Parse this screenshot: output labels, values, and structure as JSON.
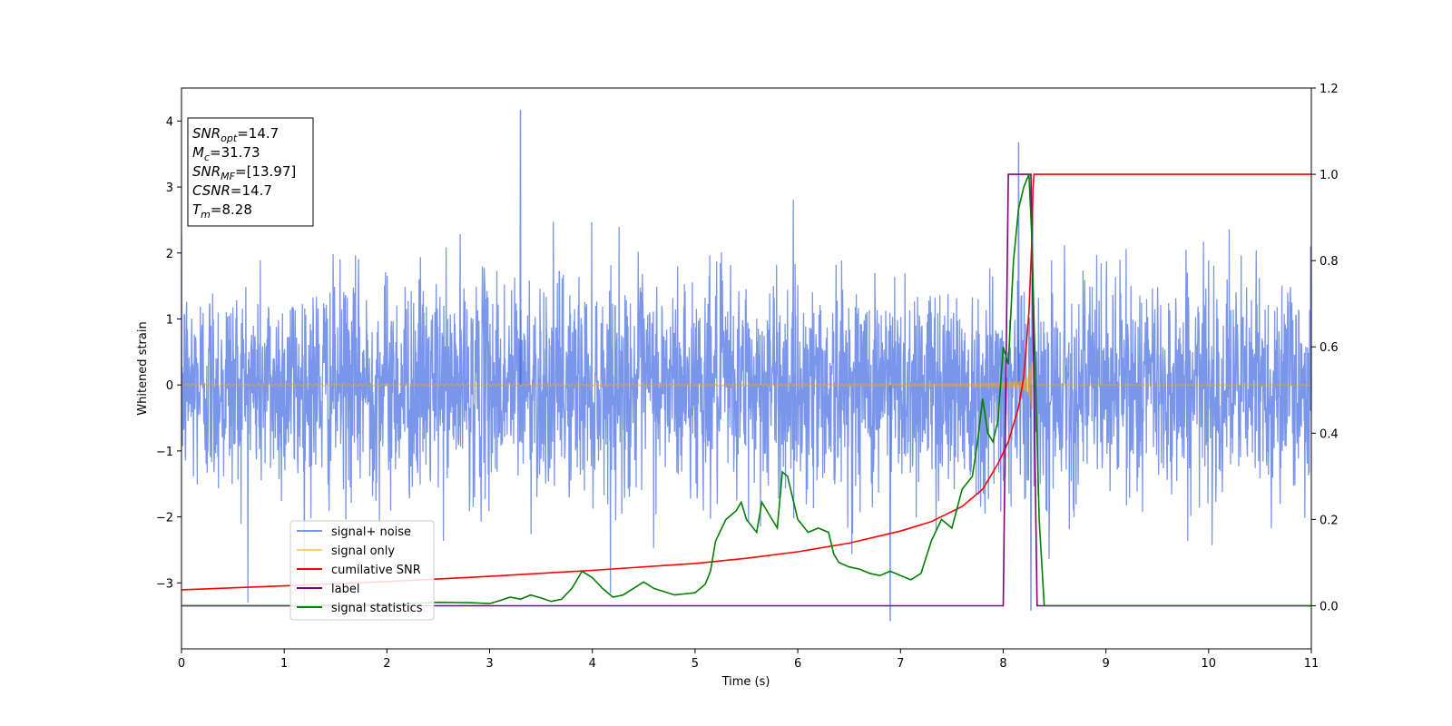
{
  "chart_data": {
    "type": "line",
    "xlabel": "Time (s)",
    "ylabel": "Whitened strain",
    "xlim": [
      0,
      11
    ],
    "ylim": [
      -4,
      4.5
    ],
    "y2lim": [
      -0.1,
      1.2
    ],
    "xticks": [
      0,
      1,
      2,
      3,
      4,
      5,
      6,
      7,
      8,
      9,
      10,
      11
    ],
    "yticks": [
      -3,
      -2,
      -1,
      0,
      1,
      2,
      3,
      4
    ],
    "y2ticks": [
      "0.0",
      "0.2",
      "0.4",
      "0.6",
      "0.8",
      "1.0",
      "1.2"
    ],
    "legend_position": "lower-left",
    "annotation": {
      "lines": [
        {
          "var": "SNR",
          "sub": "opt",
          "value": "=14.7"
        },
        {
          "var": "M",
          "sub": "c",
          "value": "=31.73"
        },
        {
          "var": "SNR",
          "sub": "MF",
          "value": "=[13.97]"
        },
        {
          "var": "CSNR",
          "sub": "",
          "value": "=14.7"
        },
        {
          "var": "T",
          "sub": "m",
          "value": "=8.28"
        }
      ]
    },
    "series": [
      {
        "name": "signal+ noise",
        "axis": "left",
        "color": "#4169e1",
        "kind": "noise",
        "x_range": [
          0,
          11
        ],
        "noise_std": 1.0,
        "peaks": [
          {
            "x": 3.3,
            "y": 4.17
          },
          {
            "x": 8.15,
            "y": 3.68
          },
          {
            "x": 6.9,
            "y": -3.58
          },
          {
            "x": 8.27,
            "y": -3.42
          }
        ]
      },
      {
        "name": "signal only",
        "axis": "left",
        "color": "#ffa500",
        "kind": "chirp",
        "x_range": [
          0,
          11
        ],
        "merger_time": 8.28
      },
      {
        "name": "cumilative SNR",
        "axis": "right",
        "color": "#ff0000",
        "x": [
          0,
          1,
          2,
          3,
          4,
          5,
          5.5,
          6,
          6.5,
          7,
          7.3,
          7.6,
          7.8,
          7.95,
          8.05,
          8.15,
          8.2,
          8.25,
          8.28,
          8.29,
          8.3,
          8.4,
          9,
          10,
          11
        ],
        "y": [
          0.037,
          0.046,
          0.056,
          0.068,
          0.082,
          0.098,
          0.11,
          0.125,
          0.145,
          0.173,
          0.195,
          0.23,
          0.27,
          0.33,
          0.38,
          0.46,
          0.53,
          0.68,
          0.85,
          0.97,
          1.0,
          1.0,
          1.0,
          1.0,
          1.0
        ]
      },
      {
        "name": "label",
        "axis": "right",
        "color": "#800080",
        "x": [
          0,
          8.0,
          8.05,
          8.27,
          8.33,
          11
        ],
        "y": [
          0.0,
          0.0,
          1.0,
          1.0,
          0.0,
          0.0
        ]
      },
      {
        "name": "signal statistics",
        "axis": "right",
        "color": "#008000",
        "x": [
          0,
          1,
          2,
          2.5,
          2.8,
          3.0,
          3.1,
          3.2,
          3.3,
          3.4,
          3.5,
          3.6,
          3.7,
          3.8,
          3.85,
          3.9,
          4.0,
          4.1,
          4.2,
          4.3,
          4.4,
          4.5,
          4.6,
          4.8,
          5.0,
          5.1,
          5.15,
          5.2,
          5.3,
          5.4,
          5.45,
          5.5,
          5.6,
          5.65,
          5.7,
          5.8,
          5.85,
          5.9,
          6.0,
          6.1,
          6.2,
          6.3,
          6.35,
          6.4,
          6.5,
          6.6,
          6.7,
          6.8,
          6.9,
          7.0,
          7.1,
          7.2,
          7.3,
          7.4,
          7.5,
          7.6,
          7.7,
          7.75,
          7.8,
          7.85,
          7.9,
          7.95,
          8.0,
          8.05,
          8.1,
          8.15,
          8.2,
          8.25,
          8.28,
          8.35,
          8.4,
          11
        ],
        "y": [
          0.0,
          0.0,
          0.003,
          0.008,
          0.007,
          0.005,
          0.012,
          0.02,
          0.015,
          0.025,
          0.018,
          0.01,
          0.015,
          0.04,
          0.06,
          0.08,
          0.065,
          0.04,
          0.02,
          0.025,
          0.04,
          0.055,
          0.04,
          0.025,
          0.03,
          0.05,
          0.08,
          0.15,
          0.2,
          0.22,
          0.24,
          0.2,
          0.17,
          0.24,
          0.22,
          0.18,
          0.31,
          0.3,
          0.2,
          0.17,
          0.18,
          0.17,
          0.12,
          0.1,
          0.09,
          0.085,
          0.075,
          0.07,
          0.08,
          0.07,
          0.06,
          0.075,
          0.15,
          0.2,
          0.18,
          0.27,
          0.3,
          0.38,
          0.48,
          0.4,
          0.38,
          0.43,
          0.6,
          0.56,
          0.8,
          0.92,
          0.97,
          1.0,
          0.85,
          0.2,
          0.0,
          0.0
        ]
      }
    ]
  }
}
